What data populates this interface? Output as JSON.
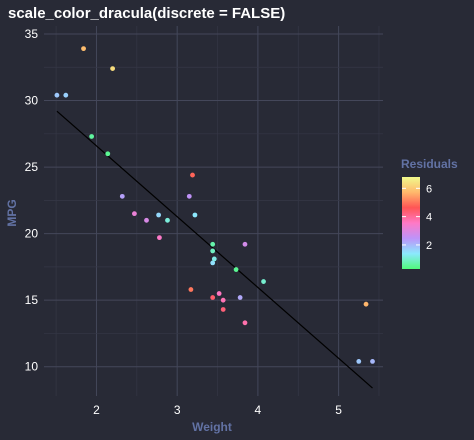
{
  "chart_data": {
    "type": "scatter",
    "title": "scale_color_dracula(discrete = FALSE)",
    "xlabel": "Weight",
    "ylabel": "MPG",
    "xlim": [
      1.35,
      5.55
    ],
    "ylim": [
      7.8,
      35.6
    ],
    "x_ticks": [
      2,
      3,
      4,
      5
    ],
    "y_ticks": [
      10,
      15,
      20,
      25,
      30,
      35
    ],
    "grid": true,
    "legend": {
      "title": "Residuals",
      "placement": "right",
      "ticks": [
        2,
        4,
        6
      ],
      "range": [
        0.3,
        6.8
      ]
    },
    "colors": {
      "background": "#282a36",
      "grid_major": "#44475a",
      "grid_minor": "#353746",
      "fit_line": "#000000",
      "gradient": [
        "#50fa7b",
        "#8be9fd",
        "#bd93f9",
        "#ff79c6",
        "#ff5555",
        "#ffb86c",
        "#f1fa8c"
      ]
    },
    "fit_line": {
      "x": [
        1.51,
        5.42
      ],
      "y": [
        29.2,
        8.4
      ]
    },
    "points": [
      {
        "x": 1.51,
        "y": 30.4,
        "residual": 1.8
      },
      {
        "x": 1.62,
        "y": 30.4,
        "residual": 1.7
      },
      {
        "x": 1.84,
        "y": 33.9,
        "residual": 5.8
      },
      {
        "x": 1.94,
        "y": 27.3,
        "residual": 0.6
      },
      {
        "x": 2.14,
        "y": 26.0,
        "residual": 0.5
      },
      {
        "x": 2.2,
        "y": 32.4,
        "residual": 6.3
      },
      {
        "x": 2.32,
        "y": 22.8,
        "residual": 2.3
      },
      {
        "x": 2.47,
        "y": 21.5,
        "residual": 3.2
      },
      {
        "x": 2.62,
        "y": 21.0,
        "residual": 2.9
      },
      {
        "x": 2.77,
        "y": 21.4,
        "residual": 1.6
      },
      {
        "x": 2.78,
        "y": 19.7,
        "residual": 3.5
      },
      {
        "x": 2.88,
        "y": 21.0,
        "residual": 1.1
      },
      {
        "x": 3.15,
        "y": 22.8,
        "residual": 2.5
      },
      {
        "x": 3.17,
        "y": 15.8,
        "residual": 5.0
      },
      {
        "x": 3.19,
        "y": 24.4,
        "residual": 4.8
      },
      {
        "x": 3.22,
        "y": 21.4,
        "residual": 1.4
      },
      {
        "x": 3.44,
        "y": 19.2,
        "residual": 0.7
      },
      {
        "x": 3.44,
        "y": 18.7,
        "residual": 0.9
      },
      {
        "x": 3.44,
        "y": 17.8,
        "residual": 1.5
      },
      {
        "x": 3.46,
        "y": 18.1,
        "residual": 1.2
      },
      {
        "x": 3.44,
        "y": 15.2,
        "residual": 4.4
      },
      {
        "x": 3.52,
        "y": 15.5,
        "residual": 3.6
      },
      {
        "x": 3.57,
        "y": 15.0,
        "residual": 3.7
      },
      {
        "x": 3.57,
        "y": 14.3,
        "residual": 4.3
      },
      {
        "x": 3.73,
        "y": 17.3,
        "residual": 0.5
      },
      {
        "x": 3.78,
        "y": 15.2,
        "residual": 2.2
      },
      {
        "x": 3.84,
        "y": 19.2,
        "residual": 2.8
      },
      {
        "x": 3.84,
        "y": 13.3,
        "residual": 3.8
      },
      {
        "x": 4.07,
        "y": 16.4,
        "residual": 1.0
      },
      {
        "x": 5.25,
        "y": 10.4,
        "residual": 1.8
      },
      {
        "x": 5.34,
        "y": 14.7,
        "residual": 5.7
      },
      {
        "x": 5.42,
        "y": 10.4,
        "residual": 2.0
      }
    ]
  }
}
